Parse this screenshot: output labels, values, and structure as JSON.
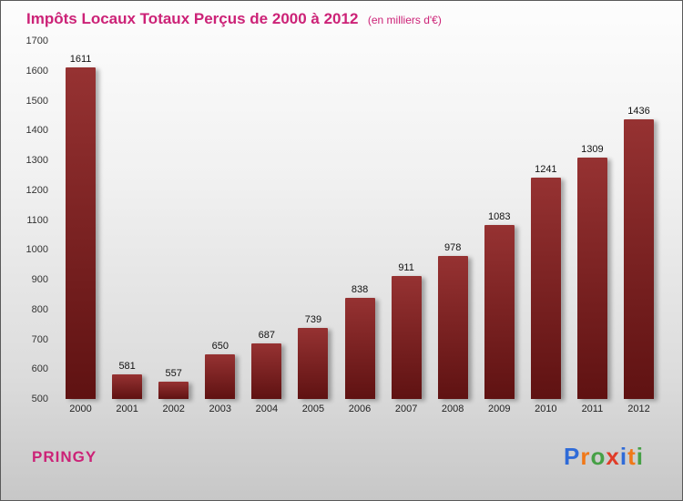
{
  "title": {
    "main": "Impôts Locaux Totaux Perçus de 2000 à 2012",
    "subtitle": "(en milliers d'€)"
  },
  "footer": {
    "location": "PRINGY",
    "logo_letters": [
      {
        "ch": "P",
        "color": "#2f6bd8"
      },
      {
        "ch": "r",
        "color": "#f07818"
      },
      {
        "ch": "o",
        "color": "#46a046"
      },
      {
        "ch": "x",
        "color": "#e03c28"
      },
      {
        "ch": "i",
        "color": "#2f6bd8"
      },
      {
        "ch": "t",
        "color": "#f07818"
      },
      {
        "ch": "i",
        "color": "#46a046"
      }
    ]
  },
  "colors": {
    "title": "#cc2277",
    "location": "#cc2277",
    "bar_top": "#963232",
    "bar_bottom": "#5f1212"
  },
  "chart_data": {
    "type": "bar",
    "title": "Impôts Locaux Totaux Perçus de 2000 à 2012",
    "subtitle": "(en milliers d'€)",
    "categories": [
      "2000",
      "2001",
      "2002",
      "2003",
      "2004",
      "2005",
      "2006",
      "2007",
      "2008",
      "2009",
      "2010",
      "2011",
      "2012"
    ],
    "values": [
      1611,
      581,
      557,
      650,
      687,
      739,
      838,
      911,
      978,
      1083,
      1241,
      1309,
      1436
    ],
    "xlabel": "",
    "ylabel": "",
    "ylim": [
      500,
      1700
    ],
    "ytick_step": 100,
    "grid": false,
    "legend": "none"
  }
}
